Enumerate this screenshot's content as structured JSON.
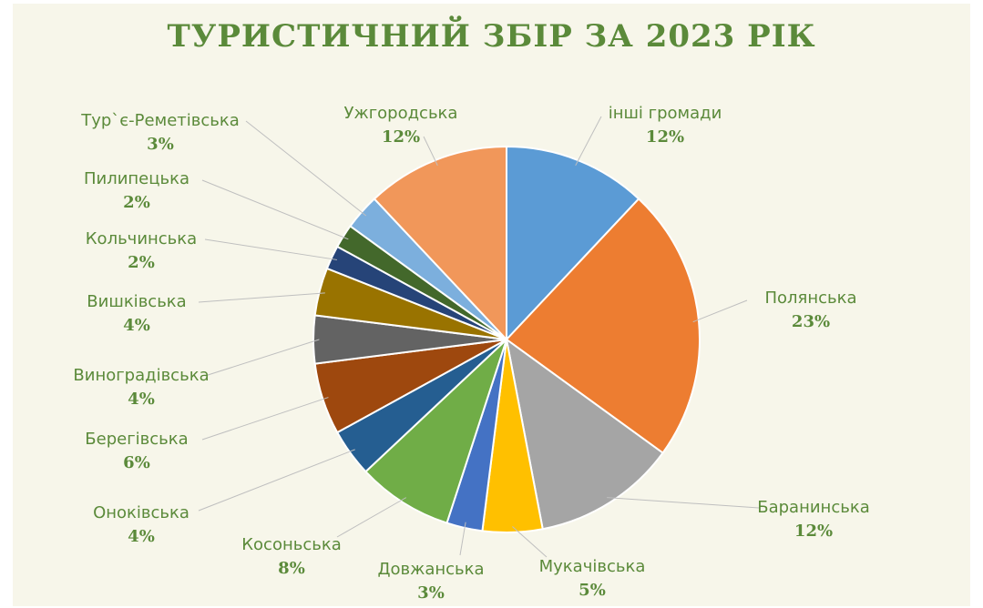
{
  "chart_data": {
    "type": "pie",
    "title": "ТУРИСТИЧНИЙ ЗБІР ЗА 2023 РІК",
    "slices": [
      {
        "label": "інші громади",
        "value": 12,
        "value_label": "12%",
        "color": "#5b9bd5"
      },
      {
        "label": "Полянська",
        "value": 23,
        "value_label": "23%",
        "color": "#ed7d31"
      },
      {
        "label": "Баранинська",
        "value": 12,
        "value_label": "12%",
        "color": "#a5a5a5"
      },
      {
        "label": "Мукачівська",
        "value": 5,
        "value_label": "5%",
        "color": "#ffc000"
      },
      {
        "label": "Довжанська",
        "value": 3,
        "value_label": "3%",
        "color": "#4472c4"
      },
      {
        "label": "Косоньська",
        "value": 8,
        "value_label": "8%",
        "color": "#70ad47"
      },
      {
        "label": "Онoківська",
        "value": 4,
        "value_label": "4%",
        "color": "#255e91"
      },
      {
        "label": "Берегівська",
        "value": 6,
        "value_label": "6%",
        "color": "#9e480e"
      },
      {
        "label": "Виноградівська",
        "value": 4,
        "value_label": "4%",
        "color": "#636363"
      },
      {
        "label": "Вишківська",
        "value": 4,
        "value_label": "4%",
        "color": "#997300"
      },
      {
        "label": "Кольчинська",
        "value": 2,
        "value_label": "2%",
        "color": "#264478"
      },
      {
        "label": "Пилипецька",
        "value": 2,
        "value_label": "2%",
        "color": "#43682b"
      },
      {
        "label": "Тур`є-Реметівська",
        "value": 3,
        "value_label": "3%",
        "color": "#7cafdd"
      },
      {
        "label": "Ужгородська",
        "value": 12,
        "value_label": "12%",
        "color": "#f1975a"
      }
    ],
    "legend": "none"
  }
}
